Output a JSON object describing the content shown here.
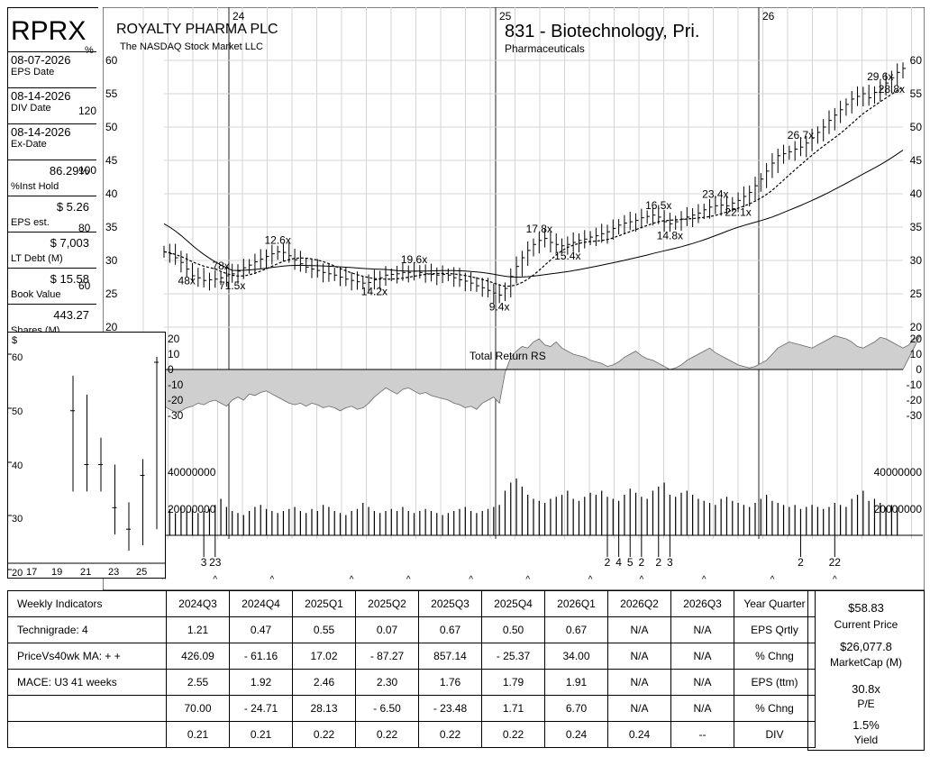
{
  "header": {
    "ticker": "RPRX",
    "company": "ROYALTY PHARMA PLC",
    "exchange": "The NASDAQ Stock Market LLC",
    "industry": "831 - Biotechnology, Pri.",
    "sector": "Pharmaceuticals",
    "pct_symbol": "%"
  },
  "sidebar": [
    {
      "value": "08-07-2026",
      "label": "EPS Date"
    },
    {
      "value": "08-14-2026",
      "label": "DIV Date"
    },
    {
      "value": "08-14-2026",
      "label": "Ex-Date"
    },
    {
      "value": "86.29%",
      "label": "%Inst Hold"
    },
    {
      "value": "$ 5.26",
      "label": "EPS est."
    },
    {
      "value": "$ 7,003",
      "label": "LT Debt (M)"
    },
    {
      "value": "$ 15.58",
      "label": "Book Value"
    },
    {
      "value": "443.27",
      "label": "Shares (M)"
    }
  ],
  "pct_axis": [
    "120",
    "100",
    "80",
    "60"
  ],
  "chart_data": {
    "type": "bar",
    "subtype": "weekly-ohlc",
    "x_year_labels": [
      "24",
      "25",
      "26"
    ],
    "y_price_ticks": [
      20,
      25,
      30,
      35,
      40,
      45,
      50,
      55,
      60
    ],
    "price_ylim": [
      20,
      60
    ],
    "rs_label": "Total Return RS",
    "rs_ticks": [
      20,
      10,
      0,
      -10,
      -20,
      -30
    ],
    "vol_ticks": [
      "40000000",
      "20000000"
    ],
    "pe_annotations": [
      {
        "week": 4,
        "text": "48x",
        "pos": "below"
      },
      {
        "week": 10,
        "text": "78x",
        "pos": "above"
      },
      {
        "week": 12,
        "text": "71.5x",
        "pos": "below"
      },
      {
        "week": 20,
        "text": "12.6x",
        "pos": "above"
      },
      {
        "week": 37,
        "text": "14.2x",
        "pos": "below"
      },
      {
        "week": 44,
        "text": "19.6x",
        "pos": "above"
      },
      {
        "week": 59,
        "text": "9.4x",
        "pos": "below"
      },
      {
        "week": 66,
        "text": "17.8x",
        "pos": "above"
      },
      {
        "week": 71,
        "text": "15.4x",
        "pos": "below"
      },
      {
        "week": 87,
        "text": "16.5x",
        "pos": "above"
      },
      {
        "week": 89,
        "text": "14.8x",
        "pos": "below"
      },
      {
        "week": 97,
        "text": "23.4x",
        "pos": "above"
      },
      {
        "week": 101,
        "text": "22.1x",
        "pos": "below"
      },
      {
        "week": 112,
        "text": "26.7x",
        "pos": "above"
      },
      {
        "week": 126,
        "text": "29.6x",
        "pos": "above"
      },
      {
        "week": 128,
        "text": "28.8x",
        "pos": "below"
      }
    ],
    "close": [
      31.3,
      31,
      30.4,
      29.7,
      28.7,
      27.7,
      27.4,
      27,
      27.1,
      27.2,
      27.4,
      27.7,
      28,
      28.4,
      28.9,
      29.3,
      29.8,
      30.2,
      30.6,
      31,
      31.3,
      31.2,
      30.7,
      30.1,
      29.5,
      29,
      28.7,
      28.5,
      28.2,
      28,
      27.8,
      27.5,
      27.2,
      27,
      26.8,
      26.6,
      26.7,
      27.1,
      27.4,
      27.8,
      27.9,
      28,
      28.2,
      28.2,
      28.4,
      28.2,
      28,
      27.9,
      27.8,
      27.9,
      27.8,
      27.4,
      27.1,
      26.9,
      26.6,
      26.2,
      25.9,
      25.5,
      25.1,
      24.8,
      25.8,
      27.6,
      29.1,
      30.4,
      31.5,
      32.4,
      33,
      33.3,
      32.7,
      32.4,
      32.2,
      32.4,
      32.7,
      33,
      33.2,
      33.5,
      33.7,
      34,
      34.3,
      34.8,
      35.3,
      35.6,
      35.8,
      36,
      36.4,
      36.6,
      36.8,
      36.5,
      35.8,
      35.5,
      35.8,
      36.2,
      36.5,
      36.8,
      37.1,
      37.6,
      38,
      38.2,
      38.3,
      38.2,
      38.6,
      39,
      39.6,
      40.2,
      41.2,
      42.2,
      43.4,
      44.6,
      45.7,
      46,
      46.3,
      46.7,
      47,
      47.6,
      48.4,
      49.2,
      50,
      51,
      51.8,
      52.6,
      53.4,
      54.2,
      54.6,
      55,
      54.4,
      55.2,
      55.8,
      56.6,
      57.4,
      58.2,
      58.8
    ],
    "volume_millions": [
      12,
      13,
      11,
      14,
      12,
      13,
      11,
      12,
      13,
      15,
      18,
      14,
      12,
      11,
      10,
      12,
      14,
      15,
      13,
      12,
      11,
      12,
      13,
      14,
      12,
      11,
      13,
      12,
      15,
      14,
      12,
      11,
      10,
      12,
      13,
      16,
      14,
      12,
      11,
      12,
      13,
      12,
      14,
      12,
      11,
      12,
      13,
      12,
      11,
      10,
      11,
      12,
      13,
      14,
      12,
      11,
      12,
      13,
      14,
      15,
      22,
      26,
      28,
      24,
      20,
      18,
      17,
      16,
      18,
      19,
      20,
      22,
      18,
      17,
      19,
      21,
      20,
      22,
      19,
      18,
      17,
      20,
      23,
      21,
      19,
      18,
      22,
      24,
      26,
      20,
      19,
      21,
      22,
      20,
      18,
      17,
      16,
      15,
      18,
      19,
      17,
      16,
      15,
      14,
      16,
      18,
      20,
      17,
      16,
      15,
      14,
      15,
      13,
      14,
      15,
      14,
      13,
      14,
      16,
      15,
      14,
      18,
      20,
      22,
      17,
      18,
      16,
      14,
      15,
      14
    ],
    "rs": [
      -24,
      -26,
      -28,
      -27,
      -25,
      -24,
      -22,
      -23,
      -21,
      -20,
      -22,
      -24,
      -20,
      -18,
      -20,
      -16,
      -17,
      -15,
      -14,
      -16,
      -18,
      -20,
      -22,
      -23,
      -22,
      -24,
      -22,
      -23,
      -25,
      -24,
      -25,
      -27,
      -25,
      -24,
      -26,
      -25,
      -22,
      -18,
      -15,
      -12,
      -14,
      -16,
      -13,
      -12,
      -14,
      -16,
      -15,
      -17,
      -18,
      -19,
      -20,
      -22,
      -23,
      -25,
      -24,
      -26,
      -22,
      -20,
      -18,
      -22,
      -2,
      8,
      12,
      15,
      14,
      18,
      20,
      16,
      15,
      18,
      14,
      12,
      10,
      9,
      8,
      6,
      5,
      4,
      2,
      3,
      5,
      8,
      10,
      12,
      9,
      7,
      6,
      4,
      2,
      0,
      1,
      3,
      6,
      8,
      10,
      12,
      14,
      11,
      9,
      7,
      5,
      3,
      2,
      1,
      2,
      4,
      6,
      10,
      14,
      16,
      18,
      17,
      16,
      15,
      14,
      16,
      18,
      20,
      22,
      21,
      20,
      18,
      15,
      14,
      16,
      18,
      21,
      20,
      18,
      16,
      14,
      16,
      20,
      22
    ]
  },
  "rs_caret_weeks": [
    0,
    9,
    19,
    33,
    43,
    54,
    64,
    75,
    84,
    95,
    107,
    118
  ],
  "ep_marks": [
    {
      "week": 7,
      "text": "3"
    },
    {
      "week": 9,
      "text": "23"
    },
    {
      "week": 78,
      "text": "2"
    },
    {
      "week": 80,
      "text": "4"
    },
    {
      "week": 82,
      "text": "5"
    },
    {
      "week": 84,
      "text": "2"
    },
    {
      "week": 87,
      "text": "2"
    },
    {
      "week": 89,
      "text": "3"
    },
    {
      "week": 112,
      "text": "2"
    },
    {
      "week": 118,
      "text": "22"
    }
  ],
  "mini": {
    "dollar": "$",
    "ticks": [
      "60",
      "50",
      "40",
      "30",
      "20"
    ],
    "xlabels": [
      "17",
      "19",
      "21",
      "23",
      "25"
    ]
  },
  "table": {
    "header": [
      "Weekly Indicators",
      "2024Q3",
      "2024Q4",
      "2025Q1",
      "2025Q2",
      "2025Q3",
      "2025Q4",
      "2026Q1",
      "2026Q2",
      "2026Q3",
      "Year Quarter"
    ],
    "rows": [
      [
        "Technigrade: 4",
        "1.21",
        "0.47",
        "0.55",
        "0.07",
        "0.67",
        "0.50",
        "0.67",
        "N/A",
        "N/A",
        "EPS Qrtly"
      ],
      [
        "PriceVs40wk MA:  + +",
        "426.09",
        "- 61.16",
        "17.02",
        "- 87.27",
        "857.14",
        "- 25.37",
        "34.00",
        "N/A",
        "N/A",
        "% Chng"
      ],
      [
        "MACE: U3  41 weeks",
        "2.55",
        "1.92",
        "2.46",
        "2.30",
        "1.76",
        "1.79",
        "1.91",
        "N/A",
        "N/A",
        "EPS (ttm)"
      ],
      [
        "",
        "70.00",
        "- 24.71",
        "28.13",
        "- 6.50",
        "- 23.48",
        "1.71",
        "6.70",
        "N/A",
        "N/A",
        "% Chng"
      ],
      [
        "",
        "0.21",
        "0.21",
        "0.22",
        "0.22",
        "0.22",
        "0.22",
        "0.24",
        "0.24",
        "--",
        "DIV"
      ]
    ]
  },
  "summary": {
    "price": "$58.83",
    "price_label": "Current Price",
    "mcap": "$26,077.8",
    "mcap_label": "MarketCap (M)",
    "pe": "30.8x",
    "pe_label": "P/E",
    "yield": "1.5%",
    "yield_label": "Yield"
  }
}
